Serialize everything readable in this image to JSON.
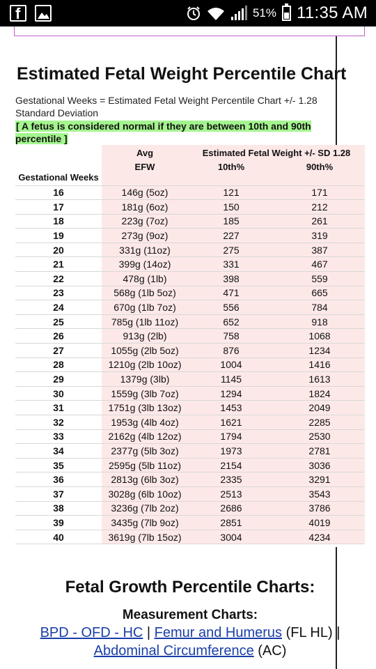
{
  "status_bar": {
    "battery_percent": "51%",
    "battery_level": 0.51,
    "time": "11:35 AM",
    "left_icons": [
      "facebook-icon",
      "gallery-icon"
    ],
    "right_icons": [
      "alarm-icon",
      "wifi-icon",
      "signal-icon",
      "battery-icon"
    ]
  },
  "page": {
    "title": "Estimated Fetal Weight Percentile Chart",
    "subtitle": "Gestational Weeks = Estimated Fetal Weight Percentile Chart +/- 1.28 Standard Deviation",
    "note": "[ A fetus is considered normal if they are between 10th and 90th percentile ]",
    "highlight_color": "#a4f58f",
    "column_tint": "#fde8e8"
  },
  "table": {
    "headers": {
      "gestational": "Gestational Weeks",
      "avg_top": "Avg",
      "avg_bottom": "EFW",
      "group": "Estimated Fetal Weight +/- SD 1.28",
      "p10": "10th%",
      "p90": "90th%"
    },
    "rows": [
      {
        "week": "16",
        "efw": "146g (5oz)",
        "p10": "121",
        "p90": "171"
      },
      {
        "week": "17",
        "efw": "181g (6oz)",
        "p10": "150",
        "p90": "212"
      },
      {
        "week": "18",
        "efw": "223g (7oz)",
        "p10": "185",
        "p90": "261"
      },
      {
        "week": "19",
        "efw": "273g (9oz)",
        "p10": "227",
        "p90": "319"
      },
      {
        "week": "20",
        "efw": "331g (11oz)",
        "p10": "275",
        "p90": "387"
      },
      {
        "week": "21",
        "efw": "399g (14oz)",
        "p10": "331",
        "p90": "467"
      },
      {
        "week": "22",
        "efw": "478g (1lb)",
        "p10": "398",
        "p90": "559"
      },
      {
        "week": "23",
        "efw": "568g (1lb 5oz)",
        "p10": "471",
        "p90": "665"
      },
      {
        "week": "24",
        "efw": "670g (1lb 7oz)",
        "p10": "556",
        "p90": "784"
      },
      {
        "week": "25",
        "efw": "785g (1lb 11oz)",
        "p10": "652",
        "p90": "918"
      },
      {
        "week": "26",
        "efw": "913g (2lb)",
        "p10": "758",
        "p90": "1068"
      },
      {
        "week": "27",
        "efw": "1055g (2lb 5oz)",
        "p10": "876",
        "p90": "1234"
      },
      {
        "week": "28",
        "efw": "1210g (2lb 10oz)",
        "p10": "1004",
        "p90": "1416"
      },
      {
        "week": "29",
        "efw": "1379g (3lb)",
        "p10": "1145",
        "p90": "1613"
      },
      {
        "week": "30",
        "efw": "1559g (3lb 7oz)",
        "p10": "1294",
        "p90": "1824"
      },
      {
        "week": "31",
        "efw": "1751g (3lb 13oz)",
        "p10": "1453",
        "p90": "2049"
      },
      {
        "week": "32",
        "efw": "1953g (4lb 4oz)",
        "p10": "1621",
        "p90": "2285"
      },
      {
        "week": "33",
        "efw": "2162g (4lb 12oz)",
        "p10": "1794",
        "p90": "2530"
      },
      {
        "week": "34",
        "efw": "2377g (5lb 3oz)",
        "p10": "1973",
        "p90": "2781"
      },
      {
        "week": "35",
        "efw": "2595g (5lb 11oz)",
        "p10": "2154",
        "p90": "3036"
      },
      {
        "week": "36",
        "efw": "2813g (6lb 3oz)",
        "p10": "2335",
        "p90": "3291"
      },
      {
        "week": "37",
        "efw": "3028g (6lb 10oz)",
        "p10": "2513",
        "p90": "3543"
      },
      {
        "week": "38",
        "efw": "3236g (7lb 2oz)",
        "p10": "2686",
        "p90": "3786"
      },
      {
        "week": "39",
        "efw": "3435g (7lb 9oz)",
        "p10": "2851",
        "p90": "4019"
      },
      {
        "week": "40",
        "efw": "3619g (7lb 15oz)",
        "p10": "3004",
        "p90": "4234"
      }
    ]
  },
  "growth": {
    "title": "Fetal Growth Percentile Charts:",
    "subtitle": "Measurement Charts:",
    "link_bpd": "BPD - OFD - HC",
    "sep1": " | ",
    "link_femur": "Femur and Humerus",
    "femur_suffix": " (FL HL) |",
    "link_ac": "Abdominal Circumference",
    "ac_suffix": " (AC)"
  }
}
